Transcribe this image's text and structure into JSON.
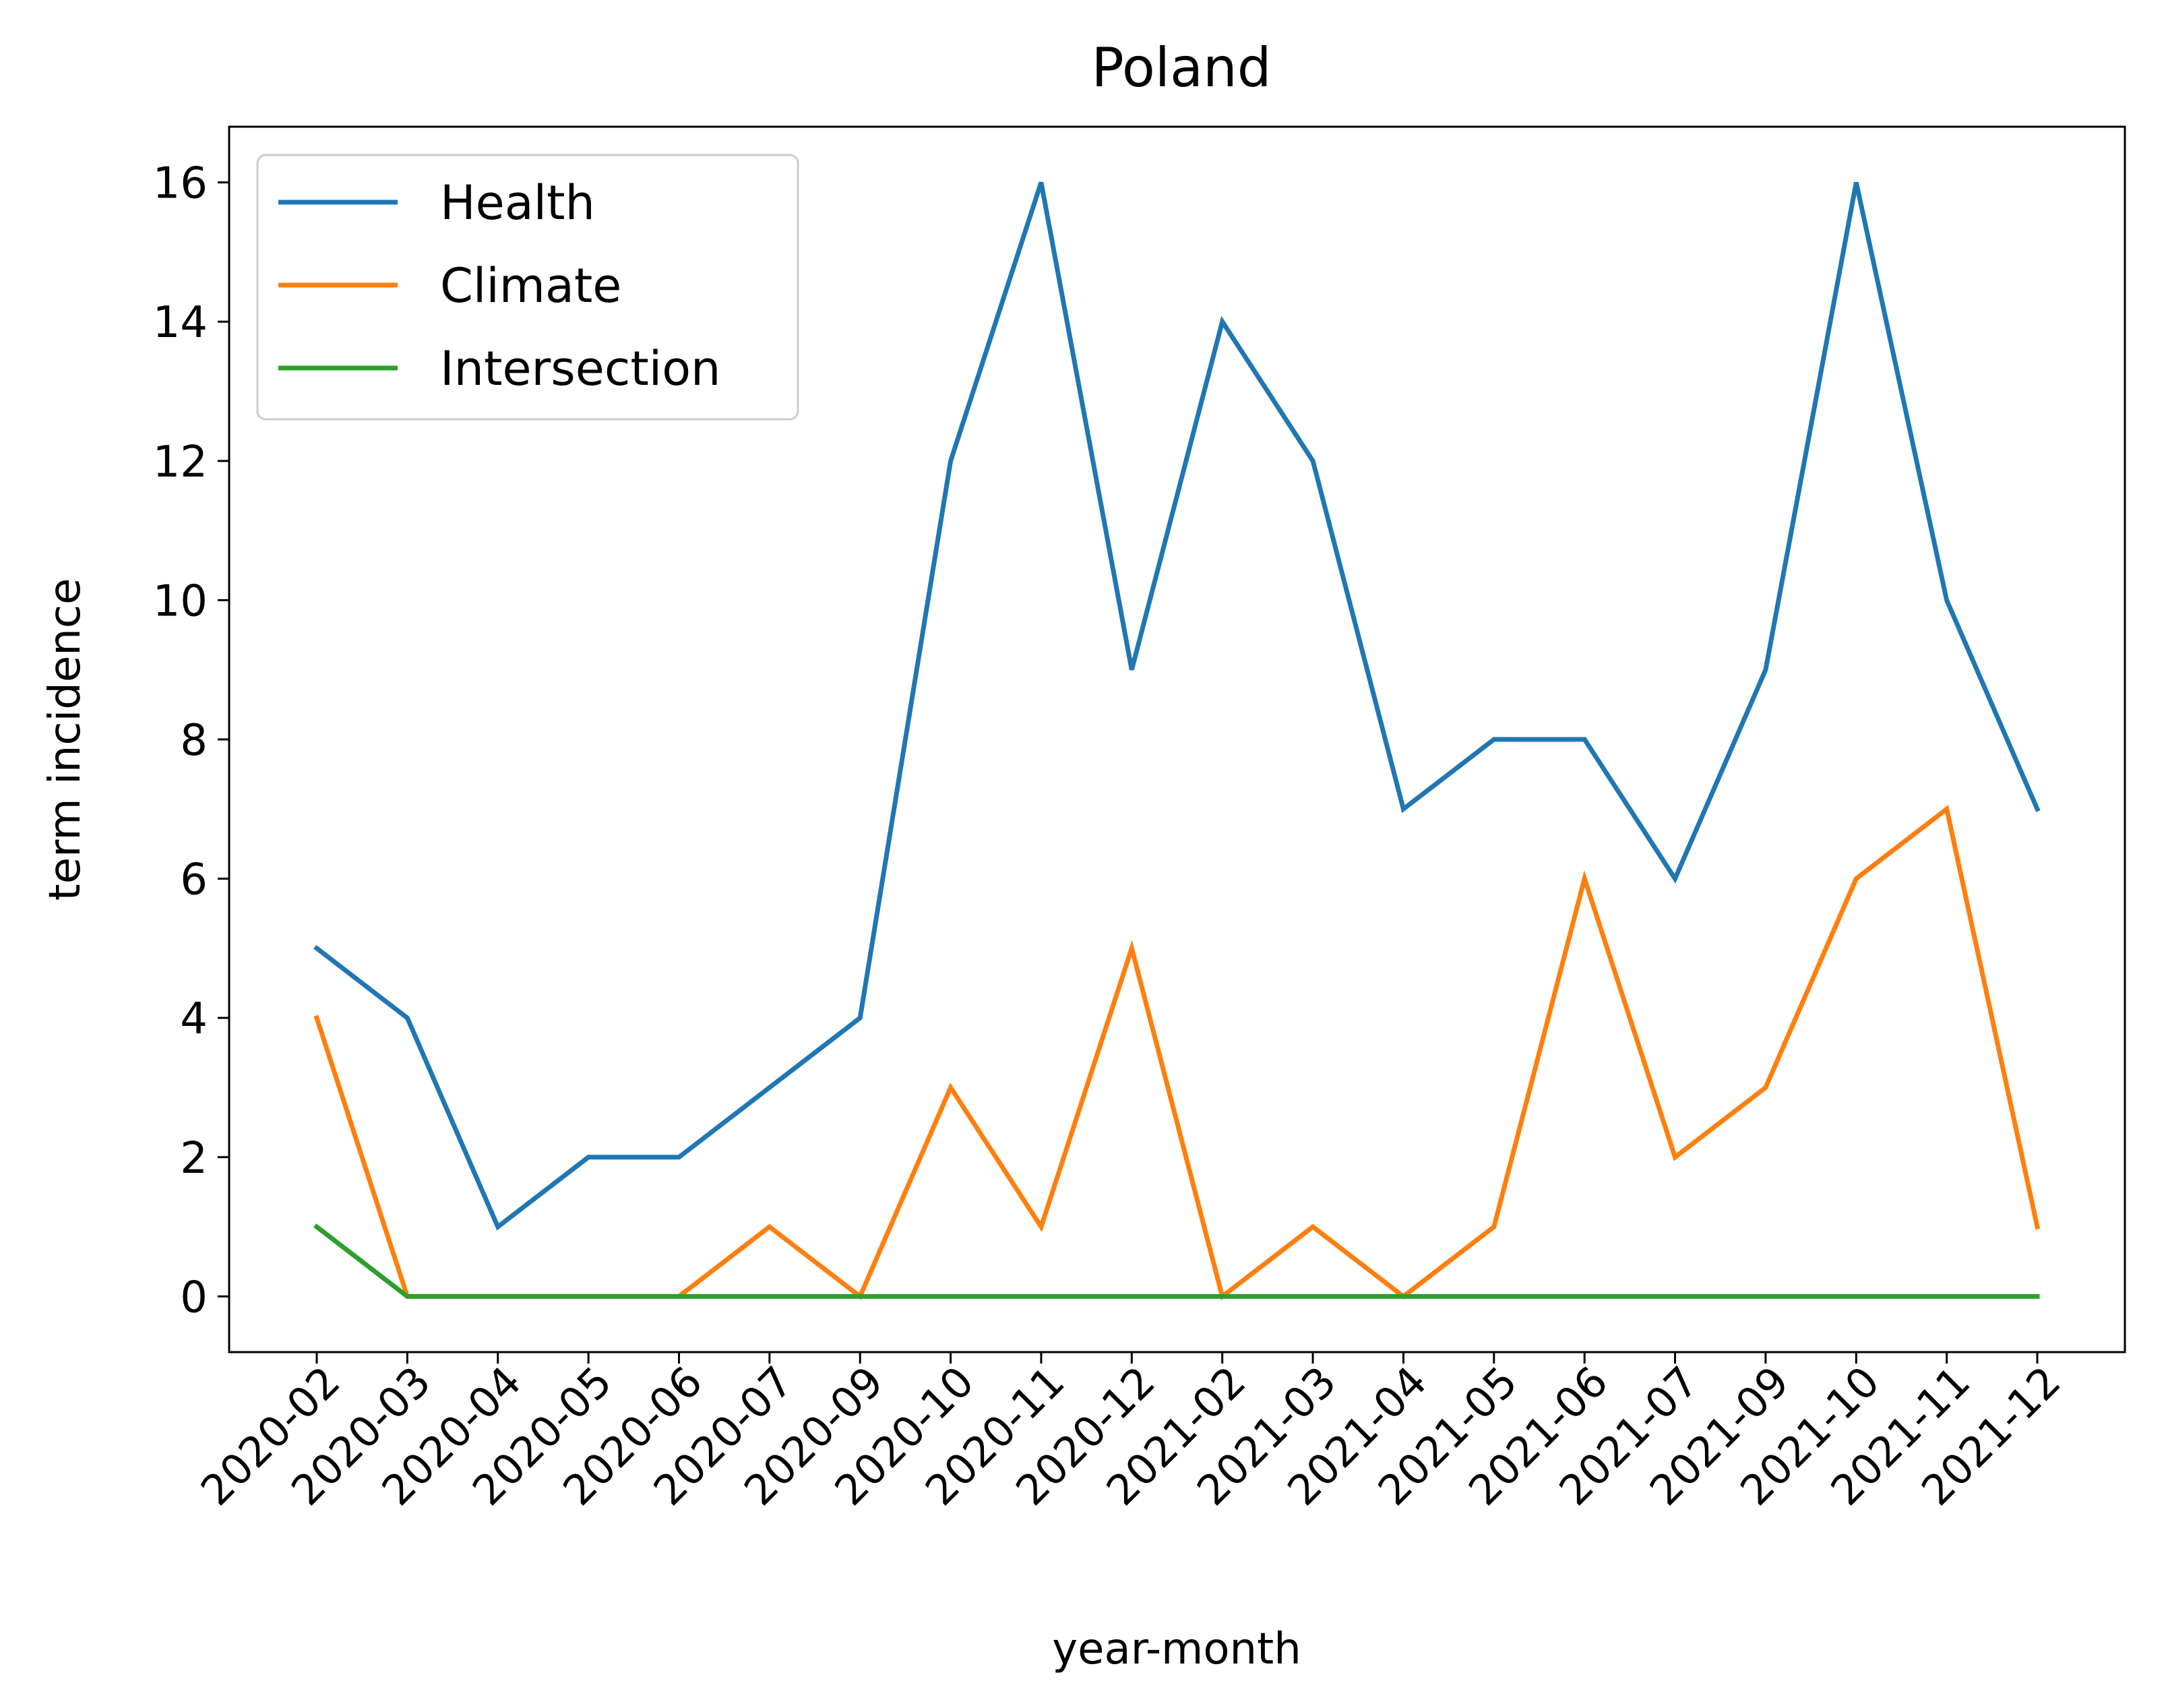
{
  "chart_data": {
    "type": "line",
    "title": "Poland",
    "xlabel": "year-month",
    "ylabel": "term incidence",
    "x": [
      "2020-02",
      "2020-03",
      "2020-04",
      "2020-05",
      "2020-06",
      "2020-07",
      "2020-09",
      "2020-10",
      "2020-11",
      "2020-12",
      "2021-02",
      "2021-03",
      "2021-04",
      "2021-05",
      "2021-06",
      "2021-07",
      "2021-09",
      "2021-10",
      "2021-11",
      "2021-12"
    ],
    "yticks": [
      "0",
      "2",
      "4",
      "6",
      "8",
      "10",
      "12",
      "14",
      "16"
    ],
    "ylim": [
      -0.8,
      16.8
    ],
    "grid": false,
    "legend_position": "top-left",
    "series": [
      {
        "name": "Health",
        "color": "#1f77b4",
        "values": [
          5,
          4,
          1,
          2,
          2,
          3,
          4,
          12,
          16,
          9,
          14,
          12,
          7,
          8,
          8,
          6,
          9,
          16,
          10,
          7
        ]
      },
      {
        "name": "Climate",
        "color": "#ff7f0e",
        "values": [
          4,
          0,
          0,
          0,
          0,
          1,
          0,
          3,
          1,
          5,
          0,
          1,
          0,
          1,
          6,
          2,
          3,
          6,
          7,
          1
        ]
      },
      {
        "name": "Intersection",
        "color": "#2ca02c",
        "values": [
          1,
          0,
          0,
          0,
          0,
          0,
          0,
          0,
          0,
          0,
          0,
          0,
          0,
          0,
          0,
          0,
          0,
          0,
          0,
          0
        ]
      }
    ]
  }
}
